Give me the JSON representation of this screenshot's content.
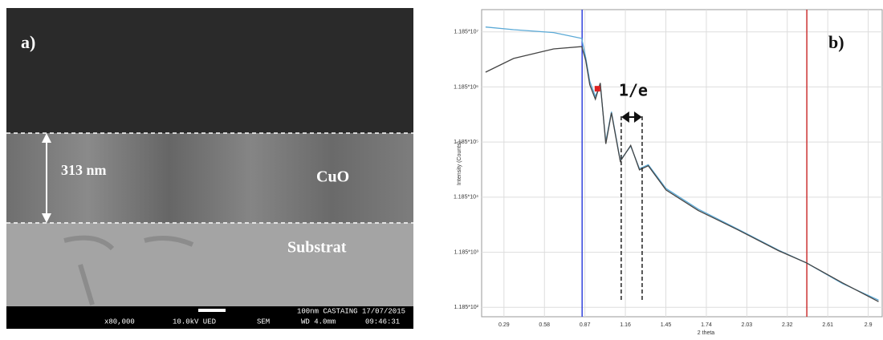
{
  "panel_a": {
    "label": "a)",
    "thickness_label": "313 nm",
    "layer": "CuO",
    "substrate": "Substrat",
    "info_top": "100nm CASTAING 17/07/2015",
    "info": [
      "x80,000",
      "10.0kV UED",
      "SEM",
      "WD 4.0mm",
      "09:46:31"
    ]
  },
  "chart_data": {
    "type": "line",
    "panel_label": "b)",
    "annotation": "1/e",
    "xlabel": "2 theta",
    "ylabel": "Intensity (Counts)",
    "log_y": true,
    "grid": true,
    "xlim": [
      0.13,
      3.0
    ],
    "ylim": [
      80,
      30000000
    ],
    "xticks": [
      0.29,
      0.58,
      0.87,
      1.16,
      1.45,
      1.74,
      2.03,
      2.32,
      2.61,
      2.9
    ],
    "yticks": [
      {
        "value": 118.5,
        "label": "1.185*10²"
      },
      {
        "value": 1185,
        "label": "1.185*10³"
      },
      {
        "value": 11850,
        "label": "1.185*10⁴"
      },
      {
        "value": 118500,
        "label": "1.185*10⁵"
      },
      {
        "value": 1185000,
        "label": "1.185*10⁶"
      },
      {
        "value": 11850000,
        "label": "1.185*10⁷"
      }
    ],
    "x": [
      0.158,
      0.359,
      0.646,
      0.847,
      0.876,
      0.905,
      0.945,
      0.98,
      1.02,
      1.06,
      1.123,
      1.198,
      1.261,
      1.324,
      1.451,
      1.681,
      1.968,
      2.256,
      2.457,
      2.715,
      2.974
    ],
    "series": [
      {
        "color": "#5aa9d6",
        "values": [
          14500000,
          13000000,
          11500000,
          9000000,
          4000000,
          1500000,
          800000,
          1300000,
          120000,
          420000,
          55000,
          100000,
          39000,
          46000,
          17000,
          7200,
          3100,
          1300,
          760,
          320,
          160
        ]
      },
      {
        "color": "#444444",
        "values": [
          2200000,
          3900000,
          5800000,
          6400000,
          3600000,
          1300000,
          710000,
          1400000,
          110000,
          400000,
          53000,
          103000,
          37000,
          44000,
          16000,
          6800,
          3000,
          1270,
          760,
          330,
          150
        ]
      }
    ],
    "vlines": [
      {
        "x": 0.85,
        "color": "#3344dd"
      },
      {
        "x": 2.46,
        "color": "#cc3333"
      }
    ],
    "dashed_x": [
      1.13,
      1.28
    ],
    "marker": {
      "x": 0.96,
      "y": 1100000,
      "color": "#dd2222"
    }
  }
}
